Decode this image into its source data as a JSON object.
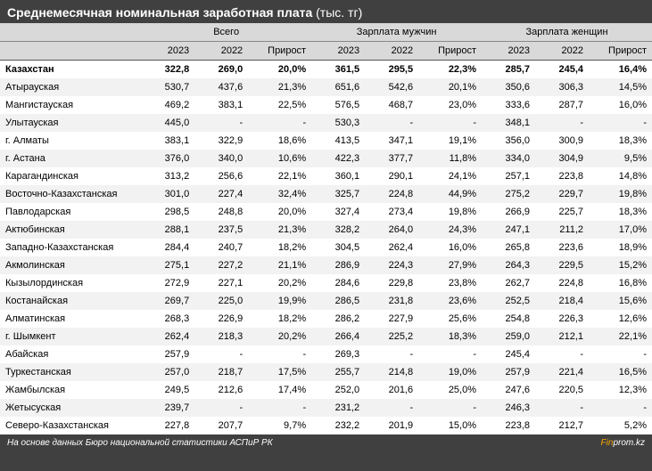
{
  "title_strong": "Среднемесячная номинальная заработная плата",
  "title_note": " (тыс. тг)",
  "groups": [
    "Всего",
    "Зарплата мужчин",
    "Зарплата женщин"
  ],
  "col_labels": {
    "y2023": "2023",
    "y2022": "2022",
    "growth": "Прирост"
  },
  "footer_source": "На основе данных Бюро национальной статистики АСПиР РК",
  "footer_brand_1": "Fin",
  "footer_brand_2": "prom.kz",
  "colors": {
    "page_bg": "#404040",
    "header_bg": "#d9d9d9",
    "row_even": "#ffffff",
    "row_odd": "#f2f2f2",
    "text_white": "#ffffff",
    "brand_accent": "#f7a600"
  },
  "total_row": {
    "name": "Казахстан",
    "t_2023": "322,8",
    "t_2022": "269,0",
    "t_gr": "20,0%",
    "m_2023": "361,5",
    "m_2022": "295,5",
    "m_gr": "22,3%",
    "w_2023": "285,7",
    "w_2022": "245,4",
    "w_gr": "16,4%"
  },
  "rows": [
    {
      "name": "Атырауская",
      "t_2023": "530,7",
      "t_2022": "437,6",
      "t_gr": "21,3%",
      "m_2023": "651,6",
      "m_2022": "542,6",
      "m_gr": "20,1%",
      "w_2023": "350,6",
      "w_2022": "306,3",
      "w_gr": "14,5%"
    },
    {
      "name": "Мангистауская",
      "t_2023": "469,2",
      "t_2022": "383,1",
      "t_gr": "22,5%",
      "m_2023": "576,5",
      "m_2022": "468,7",
      "m_gr": "23,0%",
      "w_2023": "333,6",
      "w_2022": "287,7",
      "w_gr": "16,0%"
    },
    {
      "name": "Улытауская",
      "t_2023": "445,0",
      "t_2022": "-",
      "t_gr": "-",
      "m_2023": "530,3",
      "m_2022": "-",
      "m_gr": "-",
      "w_2023": "348,1",
      "w_2022": "-",
      "w_gr": "-"
    },
    {
      "name": "г. Алматы",
      "t_2023": "383,1",
      "t_2022": "322,9",
      "t_gr": "18,6%",
      "m_2023": "413,5",
      "m_2022": "347,1",
      "m_gr": "19,1%",
      "w_2023": "356,0",
      "w_2022": "300,9",
      "w_gr": "18,3%"
    },
    {
      "name": "г. Астана",
      "t_2023": "376,0",
      "t_2022": "340,0",
      "t_gr": "10,6%",
      "m_2023": "422,3",
      "m_2022": "377,7",
      "m_gr": "11,8%",
      "w_2023": "334,0",
      "w_2022": "304,9",
      "w_gr": "9,5%"
    },
    {
      "name": "Карагандинская",
      "t_2023": "313,2",
      "t_2022": "256,6",
      "t_gr": "22,1%",
      "m_2023": "360,1",
      "m_2022": "290,1",
      "m_gr": "24,1%",
      "w_2023": "257,1",
      "w_2022": "223,8",
      "w_gr": "14,8%"
    },
    {
      "name": "Восточно-Казахстанская",
      "t_2023": "301,0",
      "t_2022": "227,4",
      "t_gr": "32,4%",
      "m_2023": "325,7",
      "m_2022": "224,8",
      "m_gr": "44,9%",
      "w_2023": "275,2",
      "w_2022": "229,7",
      "w_gr": "19,8%"
    },
    {
      "name": "Павлодарская",
      "t_2023": "298,5",
      "t_2022": "248,8",
      "t_gr": "20,0%",
      "m_2023": "327,4",
      "m_2022": "273,4",
      "m_gr": "19,8%",
      "w_2023": "266,9",
      "w_2022": "225,7",
      "w_gr": "18,3%"
    },
    {
      "name": "Актюбинская",
      "t_2023": "288,1",
      "t_2022": "237,5",
      "t_gr": "21,3%",
      "m_2023": "328,2",
      "m_2022": "264,0",
      "m_gr": "24,3%",
      "w_2023": "247,1",
      "w_2022": "211,2",
      "w_gr": "17,0%"
    },
    {
      "name": "Западно-Казахстанская",
      "t_2023": "284,4",
      "t_2022": "240,7",
      "t_gr": "18,2%",
      "m_2023": "304,5",
      "m_2022": "262,4",
      "m_gr": "16,0%",
      "w_2023": "265,8",
      "w_2022": "223,6",
      "w_gr": "18,9%"
    },
    {
      "name": "Акмолинская",
      "t_2023": "275,1",
      "t_2022": "227,2",
      "t_gr": "21,1%",
      "m_2023": "286,9",
      "m_2022": "224,3",
      "m_gr": "27,9%",
      "w_2023": "264,3",
      "w_2022": "229,5",
      "w_gr": "15,2%"
    },
    {
      "name": "Кызылординская",
      "t_2023": "272,9",
      "t_2022": "227,1",
      "t_gr": "20,2%",
      "m_2023": "284,6",
      "m_2022": "229,8",
      "m_gr": "23,8%",
      "w_2023": "262,7",
      "w_2022": "224,8",
      "w_gr": "16,8%"
    },
    {
      "name": "Костанайская",
      "t_2023": "269,7",
      "t_2022": "225,0",
      "t_gr": "19,9%",
      "m_2023": "286,5",
      "m_2022": "231,8",
      "m_gr": "23,6%",
      "w_2023": "252,5",
      "w_2022": "218,4",
      "w_gr": "15,6%"
    },
    {
      "name": "Алматинская",
      "t_2023": "268,3",
      "t_2022": "226,9",
      "t_gr": "18,2%",
      "m_2023": "286,2",
      "m_2022": "227,9",
      "m_gr": "25,6%",
      "w_2023": "254,8",
      "w_2022": "226,3",
      "w_gr": "12,6%"
    },
    {
      "name": "г. Шымкент",
      "t_2023": "262,4",
      "t_2022": "218,3",
      "t_gr": "20,2%",
      "m_2023": "266,4",
      "m_2022": "225,2",
      "m_gr": "18,3%",
      "w_2023": "259,0",
      "w_2022": "212,1",
      "w_gr": "22,1%"
    },
    {
      "name": "Абайская",
      "t_2023": "257,9",
      "t_2022": "-",
      "t_gr": "-",
      "m_2023": "269,3",
      "m_2022": "-",
      "m_gr": "-",
      "w_2023": "245,4",
      "w_2022": "-",
      "w_gr": "-"
    },
    {
      "name": "Туркестанская",
      "t_2023": "257,0",
      "t_2022": "218,7",
      "t_gr": "17,5%",
      "m_2023": "255,7",
      "m_2022": "214,8",
      "m_gr": "19,0%",
      "w_2023": "257,9",
      "w_2022": "221,4",
      "w_gr": "16,5%"
    },
    {
      "name": "Жамбылская",
      "t_2023": "249,5",
      "t_2022": "212,6",
      "t_gr": "17,4%",
      "m_2023": "252,0",
      "m_2022": "201,6",
      "m_gr": "25,0%",
      "w_2023": "247,6",
      "w_2022": "220,5",
      "w_gr": "12,3%"
    },
    {
      "name": "Жетысуская",
      "t_2023": "239,7",
      "t_2022": "-",
      "t_gr": "-",
      "m_2023": "231,2",
      "m_2022": "-",
      "m_gr": "-",
      "w_2023": "246,3",
      "w_2022": "-",
      "w_gr": "-"
    },
    {
      "name": "Северо-Казахстанская",
      "t_2023": "227,8",
      "t_2022": "207,7",
      "t_gr": "9,7%",
      "m_2023": "232,2",
      "m_2022": "201,9",
      "m_gr": "15,0%",
      "w_2023": "223,8",
      "w_2022": "212,7",
      "w_gr": "5,2%"
    }
  ]
}
